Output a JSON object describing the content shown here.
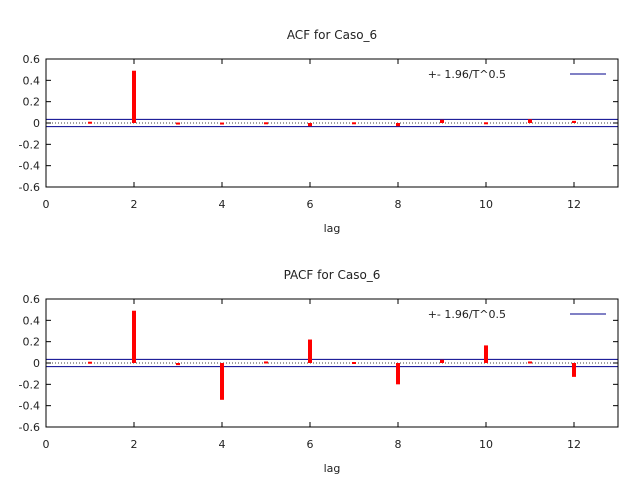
{
  "chart_data": [
    {
      "type": "bar",
      "title": "ACF for Caso_6",
      "xlabel": "lag",
      "ylabel": "",
      "xlim": [
        0,
        13
      ],
      "ylim": [
        -0.6,
        0.6
      ],
      "xticks": [
        "0",
        "2",
        "4",
        "6",
        "8",
        "10",
        "12"
      ],
      "yticks": [
        "0.6",
        "0.4",
        "0.2",
        "0",
        "-0.2",
        "-0.4",
        "-0.6"
      ],
      "legend": {
        "label": "+- 1.96/T^0.5",
        "position": "top-right"
      },
      "band": 0.0335,
      "x": [
        1,
        2,
        3,
        4,
        5,
        6,
        7,
        8,
        9,
        10,
        11,
        12
      ],
      "values": [
        0.005,
        0.49,
        -0.01,
        -0.01,
        -0.005,
        -0.03,
        -0.005,
        -0.03,
        0.03,
        -0.005,
        0.035,
        0.02
      ],
      "colors": {
        "bar": "#ff0000",
        "band": "#00008b",
        "zero": "#000000"
      },
      "grid": false
    },
    {
      "type": "bar",
      "title": "PACF for Caso_6",
      "xlabel": "lag",
      "ylabel": "",
      "xlim": [
        0,
        13
      ],
      "ylim": [
        -0.6,
        0.6
      ],
      "xticks": [
        "0",
        "2",
        "4",
        "6",
        "8",
        "10",
        "12"
      ],
      "yticks": [
        "0.6",
        "0.4",
        "0.2",
        "0",
        "-0.2",
        "-0.4",
        "-0.6"
      ],
      "legend": {
        "label": "+- 1.96/T^0.5",
        "position": "top-right"
      },
      "band": 0.0335,
      "x": [
        1,
        2,
        3,
        4,
        5,
        6,
        7,
        8,
        9,
        10,
        11,
        12
      ],
      "values": [
        0.005,
        0.49,
        -0.02,
        -0.345,
        0.01,
        0.22,
        0.0,
        -0.2,
        0.03,
        0.165,
        0.01,
        -0.13
      ],
      "colors": {
        "bar": "#ff0000",
        "band": "#00008b",
        "zero": "#000000"
      },
      "grid": false
    }
  ]
}
